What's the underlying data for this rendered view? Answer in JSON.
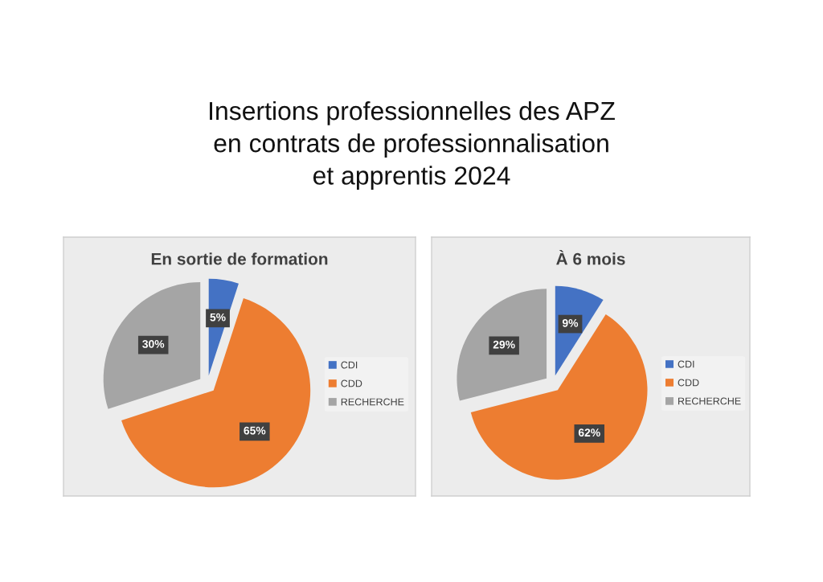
{
  "chart_data": [
    {
      "type": "other",
      "title": "Insertions professionnelles des APZ\nen contrats de professionnalisation\net apprentis 2024"
    },
    {
      "type": "pie",
      "title": "En sortie de formation",
      "categories": [
        "CDI",
        "CDD",
        "RECHERCHE"
      ],
      "values": [
        5,
        65,
        30
      ],
      "value_labels": [
        "5%",
        "65%",
        "30%"
      ],
      "colors": [
        "#4472c4",
        "#ed7d31",
        "#a5a5a5"
      ],
      "legend": "right"
    },
    {
      "type": "pie",
      "title": "À 6 mois",
      "categories": [
        "CDI",
        "CDD",
        "RECHERCHE"
      ],
      "values": [
        9,
        62,
        29
      ],
      "value_labels": [
        "9%",
        "62%",
        "29%"
      ],
      "colors": [
        "#4472c4",
        "#ed7d31",
        "#a5a5a5"
      ],
      "legend": "right"
    }
  ]
}
